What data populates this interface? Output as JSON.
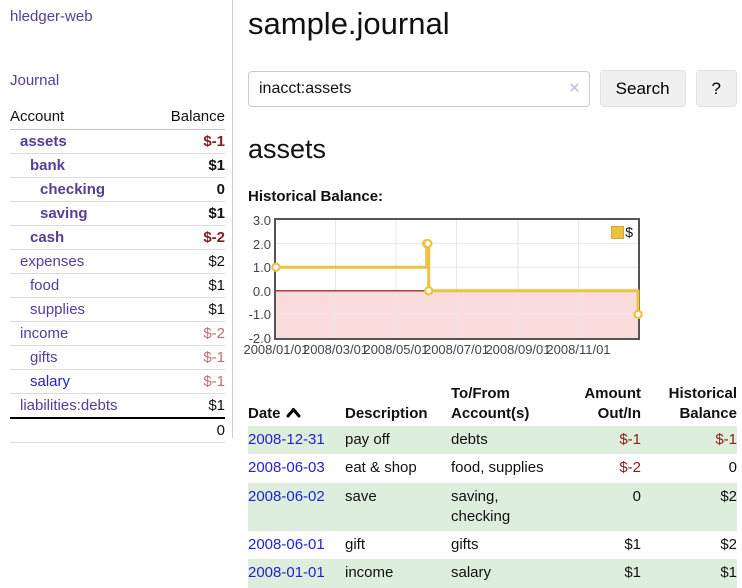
{
  "colors": {
    "link_purple": "#563d99",
    "link_blue": "#2222d2",
    "negative_strong": "#8b1a1a",
    "negative_soft": "#b97272",
    "row_stripe_green": "#ddeedd",
    "series_yellow": "#edc240",
    "chart_negative_region": "#fbdcdc",
    "chart_zero_line": "#8b0000",
    "chart_border": "#545454"
  },
  "sidebar": {
    "brand": "hledger-web",
    "journal_link": "Journal",
    "accounts_table": {
      "headers": {
        "account": "Account",
        "balance": "Balance"
      },
      "rows": [
        {
          "name": "assets",
          "balance": "$-1",
          "depth": 1,
          "bold": true,
          "neg": "strong",
          "link": "purple"
        },
        {
          "name": "bank",
          "balance": "$1",
          "depth": 2,
          "bold": true,
          "neg": "none",
          "link": "purple"
        },
        {
          "name": "checking",
          "balance": "0",
          "depth": 3,
          "bold": true,
          "neg": "none",
          "link": "purple"
        },
        {
          "name": "saving",
          "balance": "$1",
          "depth": 3,
          "bold": true,
          "neg": "none",
          "link": "purple"
        },
        {
          "name": "cash",
          "balance": "$-2",
          "depth": 2,
          "bold": true,
          "neg": "strong",
          "link": "purple"
        },
        {
          "name": "expenses",
          "balance": "$2",
          "depth": 1,
          "bold": false,
          "neg": "none",
          "link": "purple"
        },
        {
          "name": "food",
          "balance": "$1",
          "depth": 2,
          "bold": false,
          "neg": "none",
          "link": "purple"
        },
        {
          "name": "supplies",
          "balance": "$1",
          "depth": 2,
          "bold": false,
          "neg": "none",
          "link": "purple"
        },
        {
          "name": "income",
          "balance": "$-2",
          "depth": 1,
          "bold": false,
          "neg": "soft",
          "link": "purple"
        },
        {
          "name": "gifts",
          "balance": "$-1",
          "depth": 2,
          "bold": false,
          "neg": "soft",
          "link": "purple"
        },
        {
          "name": "salary",
          "balance": "$-1",
          "depth": 2,
          "bold": false,
          "neg": "soft",
          "link": "blue"
        },
        {
          "name": "liabilities:debts",
          "balance": "$1",
          "depth": 1,
          "bold": false,
          "neg": "none",
          "link": "purple"
        }
      ],
      "total": "0"
    }
  },
  "header": {
    "title": "sample.journal"
  },
  "search": {
    "query": "inacct:assets",
    "clear_icon": "✕",
    "search_label": "Search",
    "help_label": "?"
  },
  "account_page": {
    "heading": "assets",
    "chart_label": "Historical Balance:"
  },
  "chart_data": {
    "type": "line",
    "step": true,
    "title": "Historical Balance:",
    "series": [
      {
        "name": "$",
        "color": "#edc240",
        "points": [
          {
            "date": "2008-01-01",
            "value": 1
          },
          {
            "date": "2008-06-01",
            "value": 2
          },
          {
            "date": "2008-06-02",
            "value": 2
          },
          {
            "date": "2008-06-03",
            "value": 0
          },
          {
            "date": "2008-12-31",
            "value": -1
          }
        ]
      }
    ],
    "x_range": [
      "2008-01-01",
      "2008-12-31"
    ],
    "x_ticks": [
      "2008/01/01",
      "2008/03/01",
      "2008/05/01",
      "2008/07/01",
      "2008/09/01",
      "2008/11/01"
    ],
    "y_ticks": [
      "3.0",
      "2.0",
      "1.0",
      "0.0",
      "-1.0",
      "-2.0"
    ],
    "y_gridlines": [
      2,
      1,
      -1
    ],
    "ylim": [
      -2,
      3
    ],
    "legend": {
      "label": "$",
      "position": "top-right"
    },
    "negative_region_color": "#fbdcdc",
    "zero_line_color": "#8b0000",
    "grid": true
  },
  "register_table": {
    "headers": {
      "date": "Date",
      "description": "Description",
      "accounts": "To/From Account(s)",
      "amount": "Amount Out/In",
      "balance": "Historical Balance"
    },
    "sort": {
      "column": "date",
      "direction": "up"
    },
    "rows": [
      {
        "date": "2008-12-31",
        "description": "pay off",
        "accounts": "debts",
        "amount": "$-1",
        "balance": "$-1",
        "amount_negative": true,
        "balance_negative": true
      },
      {
        "date": "2008-06-03",
        "description": "eat & shop",
        "accounts": "food, supplies",
        "amount": "$-2",
        "balance": "0",
        "amount_negative": true,
        "balance_negative": false
      },
      {
        "date": "2008-06-02",
        "description": "save",
        "accounts": "saving, checking",
        "amount": "0",
        "balance": "$2",
        "amount_negative": false,
        "balance_negative": false
      },
      {
        "date": "2008-06-01",
        "description": "gift",
        "accounts": "gifts",
        "amount": "$1",
        "balance": "$2",
        "amount_negative": false,
        "balance_negative": false
      },
      {
        "date": "2008-01-01",
        "description": "income",
        "accounts": "salary",
        "amount": "$1",
        "balance": "$1",
        "amount_negative": false,
        "balance_negative": false
      }
    ]
  }
}
